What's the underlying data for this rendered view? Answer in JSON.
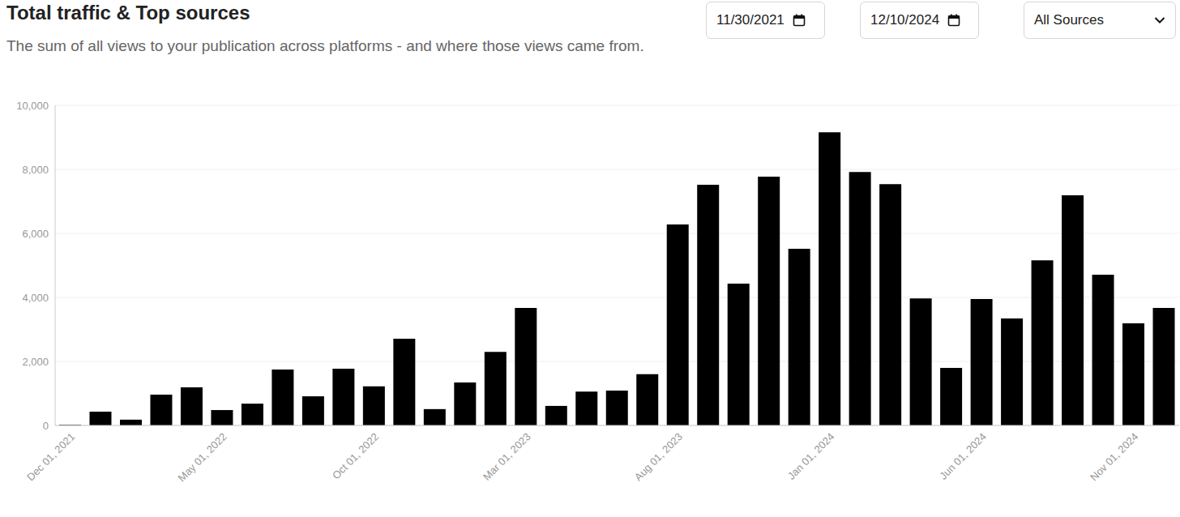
{
  "chart_data": {
    "type": "bar",
    "title": "Total traffic & Top sources",
    "subtitle": "The sum of all views to your publication across platforms - and where those views came from.",
    "controls": {
      "start_date": "11/30/2021",
      "end_date": "12/10/2024",
      "source": "All Sources"
    },
    "categories": [
      "Dec 01, 2021",
      null,
      null,
      null,
      null,
      "May 01, 2022",
      null,
      null,
      null,
      null,
      "Oct 01, 2022",
      null,
      null,
      null,
      null,
      "Mar 01, 2023",
      null,
      null,
      null,
      null,
      "Aug 01, 2023",
      null,
      null,
      null,
      null,
      "Jan 01, 2024",
      null,
      null,
      null,
      null,
      "Jun 01, 2024",
      null,
      null,
      null,
      null,
      "Nov 01, 2024",
      null
    ],
    "values": [
      20,
      430,
      180,
      960,
      1190,
      480,
      680,
      1750,
      910,
      1770,
      1220,
      2710,
      510,
      1340,
      2300,
      3670,
      610,
      1060,
      1090,
      1600,
      6280,
      7520,
      4430,
      7770,
      5520,
      9160,
      7920,
      7540,
      3970,
      1800,
      3950,
      3340,
      5160,
      7190,
      4710,
      3190,
      3670
    ],
    "color": "#000000",
    "ylim": [
      0,
      10000
    ],
    "yticks": [
      0,
      {
        "value": 2000,
        "label": "2,000"
      },
      {
        "value": 4000,
        "label": "4,000"
      },
      {
        "value": 6000,
        "label": "6,000"
      },
      {
        "value": 8000,
        "label": "8,000"
      },
      {
        "value": 10000,
        "label": "10,000"
      }
    ],
    "grid": true
  }
}
